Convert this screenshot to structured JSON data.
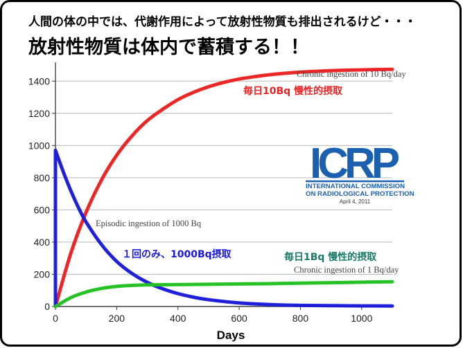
{
  "header": {
    "line1": "人間の体の中では、代謝作用によって放射性物質も排出されるけど・・・",
    "line2": "放射性物質は体内で蓄積する！！"
  },
  "logo": {
    "letters": "ICRP",
    "line1": "INTERNATIONAL COMMISSION",
    "line2": "ON RADIOLOGICAL PROTECTION",
    "date": "April 4, 2011"
  },
  "annotations": {
    "chronic10_en": "Chronic ingestion of 10 Bq/day",
    "chronic10_jp": "毎日10Bq  慢性的摂取",
    "episodic_en": "Episodic ingestion of 1000 Bq",
    "episodic_jp": "１回のみ、1000Bq摂取",
    "chronic1_en": "Chronic ingestion of 1 Bq/day",
    "chronic1_jp": "毎日1Bq  慢性的摂取"
  },
  "colors": {
    "chronic10": "#ee2222",
    "episodic": "#1a1adc",
    "chronic1": "#22c422",
    "logo": "#1b5fb0"
  },
  "chart_data": {
    "type": "line",
    "xlabel": "Days",
    "ylabel": "",
    "xlim": [
      0,
      1100
    ],
    "ylim": [
      0,
      1500
    ],
    "xticks": [
      0,
      200,
      400,
      600,
      800,
      1000
    ],
    "yticks": [
      0,
      200,
      400,
      600,
      800,
      1000,
      1200,
      1400
    ],
    "grid": "horizontal",
    "series": [
      {
        "name": "Chronic ingestion of 10 Bq/day",
        "color": "#ee2222",
        "x": [
          0,
          50,
          100,
          150,
          200,
          250,
          300,
          350,
          400,
          450,
          500,
          550,
          600,
          650,
          700,
          750,
          800,
          850,
          900,
          950,
          1000,
          1050,
          1100
        ],
        "y": [
          0,
          330,
          585,
          785,
          940,
          1060,
          1155,
          1225,
          1285,
          1330,
          1365,
          1392,
          1413,
          1428,
          1440,
          1449,
          1456,
          1461,
          1465,
          1468,
          1470,
          1472,
          1473
        ]
      },
      {
        "name": "Episodic ingestion of 1000 Bq",
        "color": "#1a1adc",
        "x": [
          0,
          25,
          50,
          75,
          100,
          150,
          200,
          250,
          300,
          350,
          400,
          450,
          500,
          600,
          700,
          800,
          900,
          1000,
          1100
        ],
        "y": [
          970,
          840,
          720,
          615,
          525,
          385,
          280,
          205,
          150,
          110,
          80,
          58,
          42,
          22,
          12,
          7,
          5,
          4,
          3
        ]
      },
      {
        "name": "Chronic ingestion of 1 Bq/day",
        "color": "#22c422",
        "x": [
          0,
          50,
          100,
          150,
          200,
          250,
          300,
          400,
          500,
          600,
          700,
          800,
          900,
          1000,
          1100
        ],
        "y": [
          0,
          55,
          90,
          112,
          125,
          131,
          134,
          136,
          138,
          140,
          142,
          145,
          148,
          151,
          154
        ]
      }
    ]
  }
}
